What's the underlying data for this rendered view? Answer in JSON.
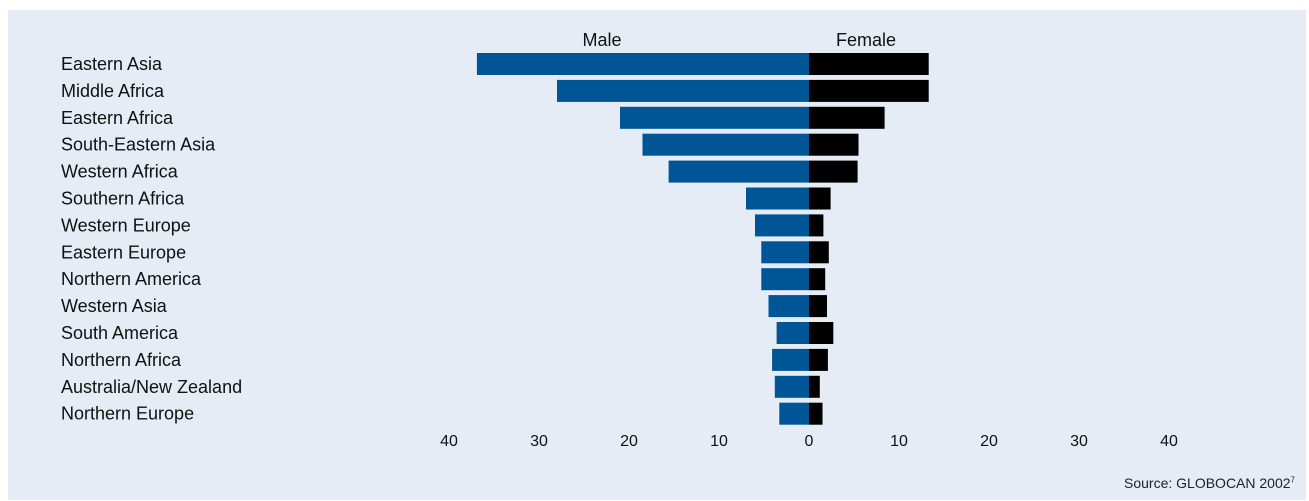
{
  "colors": {
    "male": "#005596",
    "female": "#000000",
    "background": "#e5ecf5"
  },
  "chart_data": {
    "type": "bar",
    "orientation": "horizontal-butterfly",
    "categories": [
      "Eastern Asia",
      "Middle Africa",
      "Eastern Africa",
      "South-Eastern Asia",
      "Western Africa",
      "Southern Africa",
      "Western Europe",
      "Eastern Europe",
      "Northern America",
      "Western Asia",
      "South America",
      "Northern Africa",
      "Australia/New Zealand",
      "Northern Europe"
    ],
    "series": [
      {
        "name": "Male",
        "values": [
          36.9,
          28.0,
          21.0,
          18.5,
          15.6,
          7.0,
          6.0,
          5.3,
          5.3,
          4.5,
          3.6,
          4.1,
          3.8,
          3.3
        ]
      },
      {
        "name": "Female",
        "values": [
          13.3,
          13.3,
          8.4,
          5.5,
          5.4,
          2.4,
          1.6,
          2.2,
          1.8,
          2.0,
          2.7,
          2.1,
          1.2,
          1.5
        ]
      }
    ],
    "xlim": [
      -40,
      40
    ],
    "x_ticks": [
      -40,
      -30,
      -20,
      -10,
      0,
      10,
      20,
      30,
      40
    ],
    "x_tick_labels": [
      "40",
      "30",
      "20",
      "10",
      "0",
      "10",
      "20",
      "30",
      "40"
    ],
    "legend_placement": "top, above each side",
    "grid": false
  },
  "source": {
    "text": "Source: GLOBOCAN 2002",
    "superscript": "7"
  }
}
